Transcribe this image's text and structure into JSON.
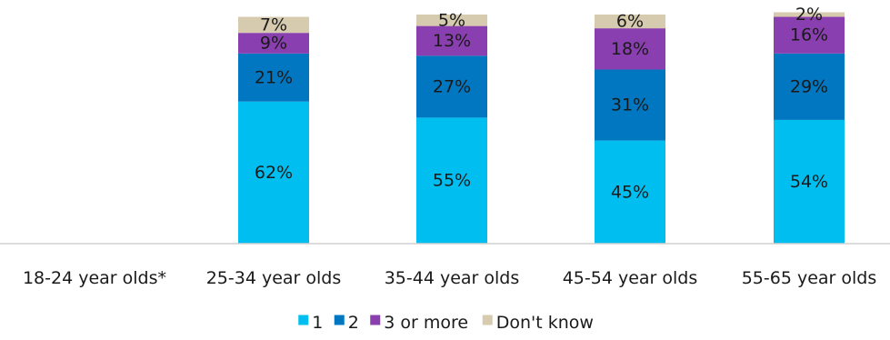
{
  "chart_data": {
    "type": "bar",
    "stacked": true,
    "categories": [
      "18-24 year olds*",
      "25-34 year olds",
      "35-44 year olds",
      "45-54 year olds",
      "55-65 year olds"
    ],
    "series": [
      {
        "name": "1",
        "color": "#00BFF0",
        "values": [
          null,
          62,
          55,
          45,
          54
        ]
      },
      {
        "name": "2",
        "color": "#0077C0",
        "values": [
          null,
          21,
          27,
          31,
          29
        ]
      },
      {
        "name": "3 or more",
        "color": "#8A3FB0",
        "values": [
          null,
          9,
          13,
          18,
          16
        ]
      },
      {
        "name": "Don't know",
        "color": "#D6CBAE",
        "values": [
          null,
          7,
          5,
          6,
          2
        ]
      }
    ],
    "value_suffix": "%",
    "ylim": [
      0,
      100
    ],
    "legend_position": "bottom",
    "grid": false
  }
}
